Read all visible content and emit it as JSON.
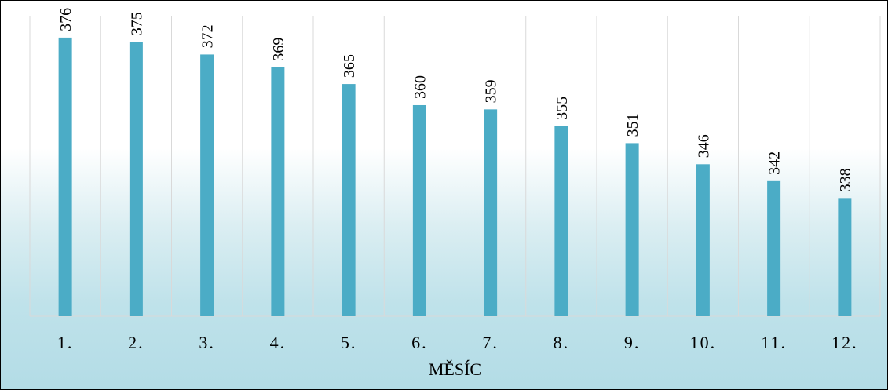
{
  "chart_data": {
    "type": "bar",
    "categories": [
      "1.",
      "2.",
      "3.",
      "4.",
      "5.",
      "6.",
      "7.",
      "8.",
      "9.",
      "10.",
      "11.",
      "12."
    ],
    "values": [
      376,
      375,
      372,
      369,
      365,
      360,
      359,
      355,
      351,
      346,
      342,
      338
    ],
    "title": "",
    "xlabel": "MĚSÍC",
    "ylabel": "",
    "ylim": [
      310,
      381
    ],
    "grid": "vertical",
    "legend": "none",
    "bar_color": "#4bacc6",
    "grid_color": "#d9d9d9"
  }
}
